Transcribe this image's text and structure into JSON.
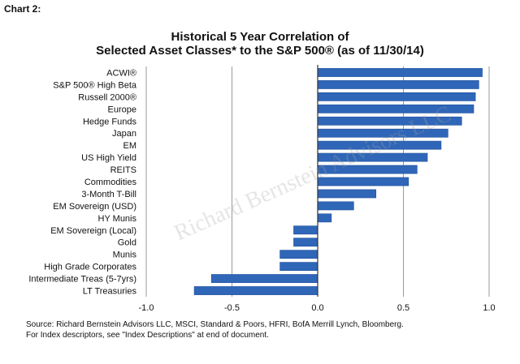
{
  "chart_label": "Chart 2:",
  "watermark": "Richard Bernstein Advisors LLC",
  "source": {
    "line1": "Source: Richard Bernstein Advisors LLC, MSCI, Standard & Poors, HFRI, BofA Merrill Lynch, Bloomberg.",
    "line2": "For Index descriptors, see \"Index Descriptions\" at end of document."
  },
  "colors": {
    "bar": "#2f66b8",
    "bar_edge": "#1d4f9a",
    "grid": "#9a9a9a",
    "axis": "#333333"
  },
  "chart_data": {
    "type": "bar",
    "orientation": "horizontal",
    "title": "Historical 5 Year Correlation of",
    "subtitle": "Selected Asset Classes* to the S&P 500® (as of 11/30/14)",
    "xlabel": "",
    "ylabel": "",
    "xlim": [
      -1.0,
      1.0
    ],
    "ticks": [
      "-1.0",
      "-0.5",
      "0.0",
      "0.5",
      "1.0"
    ],
    "tick_values": [
      -1.0,
      -0.5,
      0.0,
      0.5,
      1.0
    ],
    "grid": "vertical",
    "categories": [
      "ACWI®",
      "S&P 500® High Beta",
      "Russell 2000®",
      "Europe",
      "Hedge Funds",
      "Japan",
      "EM",
      "US High Yield",
      "REITS",
      "Commodities",
      "3-Month T-Bill",
      "EM Sovereign (USD)",
      "HY Munis",
      "EM Sovereign (Local)",
      "Gold",
      "Munis",
      "High Grade Corporates",
      "Intermediate Treas (5-7yrs)",
      "LT Treasuries"
    ],
    "values": [
      0.96,
      0.94,
      0.92,
      0.91,
      0.84,
      0.76,
      0.72,
      0.64,
      0.58,
      0.53,
      0.34,
      0.21,
      0.08,
      -0.14,
      -0.14,
      -0.22,
      -0.22,
      -0.62,
      -0.72
    ]
  }
}
